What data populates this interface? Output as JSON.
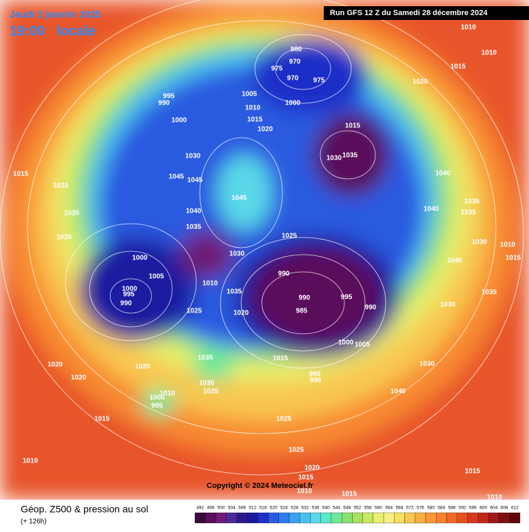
{
  "header": {
    "date": "Jeudi 2 janvier 2025",
    "time": "19:00",
    "time_suffix": "locale",
    "run": "Run GFS 12 Z du Samedi 28 décembre 2024"
  },
  "map": {
    "copyright": "Copyright © 2024 Meteociel.fr",
    "isobar_labels": [
      1010,
      1010,
      1015,
      980,
      970,
      975,
      970,
      975,
      995,
      990,
      1005,
      1000,
      1010,
      1000,
      1015,
      1020,
      1015,
      1035,
      1030,
      1030,
      1045,
      1045,
      1045,
      1040,
      1035,
      1035,
      1040,
      1015,
      1020,
      1020,
      1025,
      1040,
      1035,
      1025,
      1030,
      1030,
      1040,
      1010,
      1015,
      1000,
      1005,
      990,
      1000,
      995,
      990,
      990,
      995,
      990,
      985,
      1010,
      1035,
      1020,
      1025,
      1030,
      1035,
      1000,
      1005,
      1015,
      990,
      995,
      1030,
      1035,
      1030,
      1025,
      1020,
      1020,
      1020,
      1040,
      1010,
      1005,
      995,
      1015,
      1025,
      1010,
      1025,
      1020,
      1015,
      1010,
      1015,
      1015,
      1010,
      1020
    ]
  },
  "footer": {
    "title": "Géop. Z500 & pression au sol",
    "lead": "(+ 126h)"
  },
  "legend": {
    "colorbar": {
      "levels": [
        492,
        496,
        500,
        504,
        508,
        512,
        516,
        520,
        524,
        528,
        532,
        536,
        540,
        544,
        548,
        552,
        556,
        560,
        564,
        568,
        572,
        576,
        580,
        584,
        588,
        592,
        596,
        600,
        604,
        608,
        612
      ],
      "colors": [
        "#3a0a3a",
        "#5a0f5a",
        "#6e1a78",
        "#4a2a9a",
        "#2a1a8a",
        "#1a1aa0",
        "#1f2fc8",
        "#2a5ae0",
        "#2f7cf0",
        "#3aa0f0",
        "#4ac0f0",
        "#5ad8e8",
        "#5ae8c8",
        "#6ee89a",
        "#8ae070",
        "#a8e060",
        "#c8e860",
        "#e8f070",
        "#f8f080",
        "#f8e060",
        "#f8c850",
        "#f8b040",
        "#f89838",
        "#f88030",
        "#f06828",
        "#e85020",
        "#d83820",
        "#c02818",
        "#a01818",
        "#801010",
        "#600808"
      ]
    }
  }
}
